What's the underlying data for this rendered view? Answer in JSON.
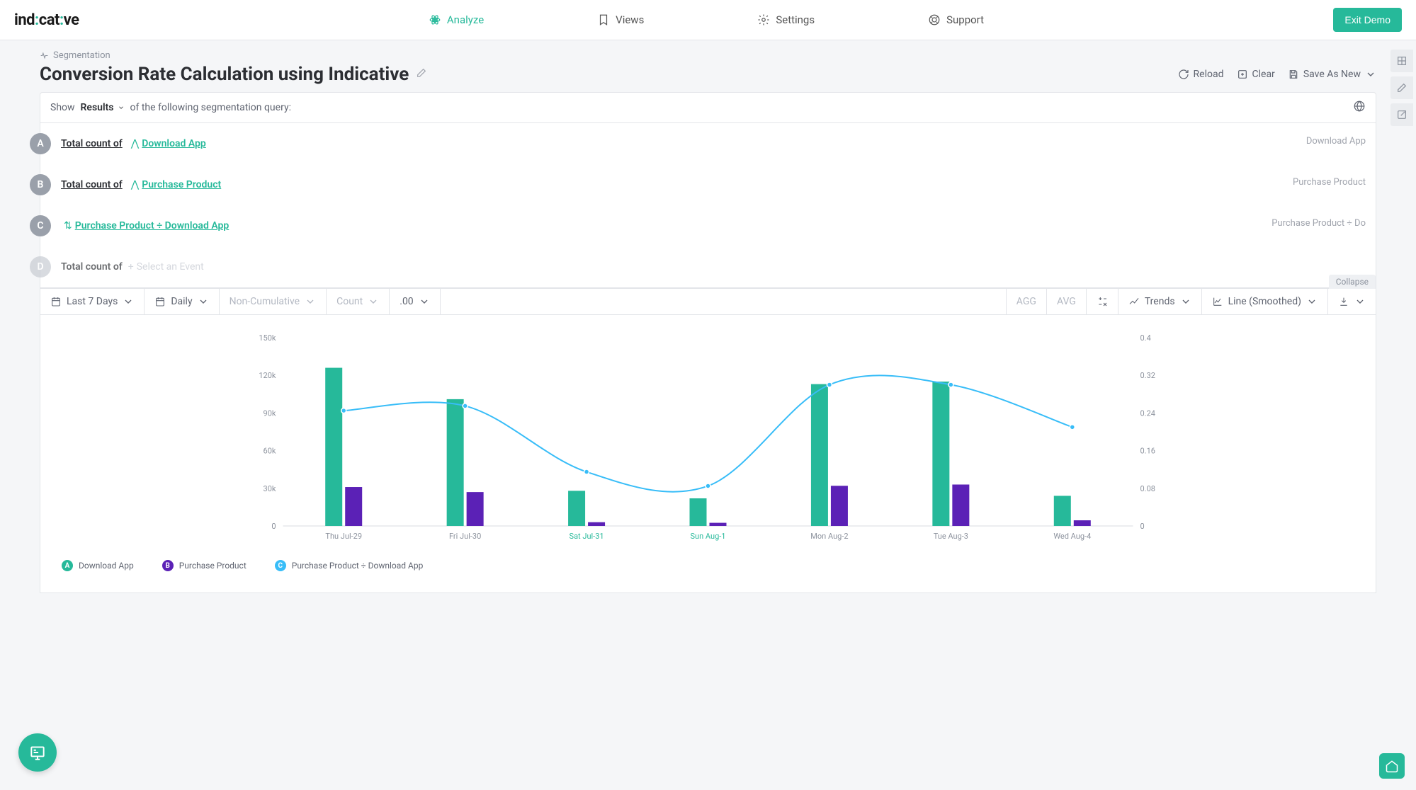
{
  "brand": {
    "name_pre": "ind",
    "name_mid": "cat",
    "name_post": "ve"
  },
  "nav": {
    "analyze": "Analyze",
    "views": "Views",
    "settings": "Settings",
    "support": "Support",
    "exit": "Exit Demo"
  },
  "breadcrumb": {
    "label": "Segmentation"
  },
  "title": "Conversion Rate Calculation using Indicative",
  "actions": {
    "reload": "Reload",
    "clear": "Clear",
    "save": "Save As New"
  },
  "query": {
    "show": "Show",
    "results": "Results",
    "tail": "of the following segmentation query:",
    "rows": [
      {
        "id": "A",
        "label": "Total count of",
        "event": "Download App",
        "alias": "Download App",
        "type": "event"
      },
      {
        "id": "B",
        "label": "Total count of",
        "event": "Purchase Product",
        "alias": "Purchase Product",
        "type": "event"
      },
      {
        "id": "C",
        "label": "",
        "event": "Purchase Product ÷ Download App",
        "alias": "Purchase Product ÷ Do",
        "type": "math"
      },
      {
        "id": "D",
        "label": "Total count of",
        "event": "Select an Event",
        "alias": "",
        "type": "placeholder"
      }
    ]
  },
  "toolbar": {
    "range": "Last 7 Days",
    "grain": "Daily",
    "cumulative": "Non-Cumulative",
    "count": "Count",
    "decimal": ".00",
    "agg": "AGG",
    "avg": "AVG",
    "trends": "Trends",
    "chart_type": "Line (Smoothed)",
    "collapse": "Collapse"
  },
  "chart": {
    "type": "bar+line",
    "left_axis": {
      "min": 0,
      "max": 150000,
      "ticks": [
        0,
        "30k",
        "60k",
        "90k",
        "120k",
        "150k"
      ]
    },
    "right_axis": {
      "min": 0,
      "max": 0.4,
      "ticks": [
        "0",
        "0.08",
        "0.16",
        "0.24",
        "0.32",
        "0.4"
      ]
    },
    "categories": [
      "Thu Jul-29",
      "Fri Jul-30",
      "Sat Jul-31",
      "Sun Aug-1",
      "Mon Aug-2",
      "Tue Aug-3",
      "Wed Aug-4"
    ],
    "highlight_indices": [
      2,
      3
    ],
    "series_a": {
      "name": "Download App",
      "color": "#26b99a",
      "values": [
        126000,
        101000,
        28000,
        22000,
        113000,
        115000,
        24000
      ]
    },
    "series_b": {
      "name": "Purchase Product",
      "color": "#5b21b6",
      "values": [
        31000,
        27000,
        3000,
        2500,
        32000,
        33000,
        4500
      ]
    },
    "series_c": {
      "name": "Purchase Product ÷ Download App",
      "color": "#38bdf8",
      "values": [
        0.245,
        0.255,
        0.115,
        0.085,
        0.3,
        0.3,
        0.21
      ]
    },
    "bar_width": 0.28,
    "background": "#ffffff",
    "grid_color": "#f0f1f4"
  },
  "legend": [
    {
      "id": "A",
      "color": "#26b99a",
      "label": "Download App"
    },
    {
      "id": "B",
      "color": "#5b21b6",
      "label": "Purchase Product"
    },
    {
      "id": "C",
      "color": "#38bdf8",
      "label": "Purchase Product ÷ Download App"
    }
  ]
}
